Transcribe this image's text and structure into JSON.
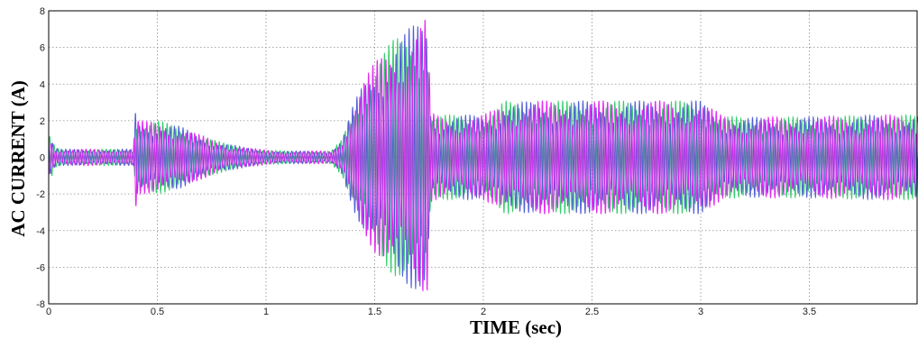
{
  "chart_data": {
    "type": "line",
    "xlabel": "TIME (sec)",
    "ylabel": "AC CURRENT (A)",
    "xlim": [
      0,
      4
    ],
    "ylim": [
      -8,
      8
    ],
    "x_ticks": [
      "0",
      "0.5",
      "1",
      "1.5",
      "2",
      "2.5",
      "3",
      "3.5"
    ],
    "y_ticks": [
      "8",
      "6",
      "4",
      "2",
      "0",
      "-2",
      "-4",
      "-6",
      "-8"
    ],
    "grid": true,
    "colors": {
      "phase_a": "#22c55e",
      "phase_b": "#3f4fd0",
      "phase_c": "#e020f0"
    },
    "amplitude_envelope": {
      "t": [
        0.0,
        0.015,
        0.03,
        0.06,
        0.39,
        0.4,
        0.405,
        0.41,
        0.45,
        0.5,
        0.6,
        0.7,
        0.8,
        0.9,
        1.0,
        1.1,
        1.2,
        1.3,
        1.35,
        1.4,
        1.45,
        1.5,
        1.55,
        1.6,
        1.65,
        1.7,
        1.74,
        1.75,
        1.76,
        1.8,
        2.0,
        2.05,
        2.1,
        2.15,
        2.25,
        2.5,
        2.9,
        3.0,
        3.05,
        3.1,
        3.2,
        3.3,
        3.5,
        3.8,
        4.0
      ],
      "amp_A": [
        1.2,
        1.0,
        0.55,
        0.45,
        0.45,
        2.9,
        2.5,
        2.0,
        1.95,
        2.0,
        1.7,
        1.2,
        0.8,
        0.55,
        0.4,
        0.35,
        0.35,
        0.35,
        1.0,
        2.8,
        4.2,
        5.2,
        6.0,
        6.6,
        7.0,
        7.4,
        7.7,
        5.0,
        2.4,
        2.3,
        2.3,
        2.6,
        3.1,
        3.0,
        3.1,
        3.1,
        3.1,
        3.1,
        2.7,
        2.3,
        2.15,
        2.2,
        2.2,
        2.3,
        2.3
      ]
    },
    "carrier_frequency_hz": 50,
    "beat_nodes_sec": [
      1.62,
      2.2,
      2.43,
      2.7,
      2.95,
      3.55,
      3.7
    ]
  }
}
